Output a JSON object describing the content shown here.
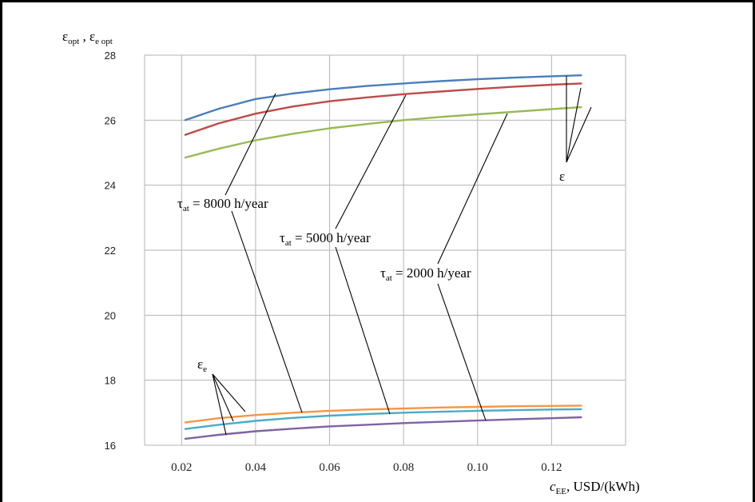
{
  "chart_data": {
    "type": "line",
    "ylabel": {
      "base": "ε",
      "sub1": "opt",
      "sep": " , ",
      "base2": "ε",
      "sub2": "e opt"
    },
    "xlabel": {
      "var": "c",
      "sub": "EE",
      "unit": ", USD/(kWh)"
    },
    "xlim": [
      0.01,
      0.14
    ],
    "ylim": [
      16,
      28
    ],
    "x_ticks": [
      0.02,
      0.04,
      0.06,
      0.08,
      0.1,
      0.12
    ],
    "x_tick_labels": [
      "0.02",
      "0.04",
      "0.06",
      "0.08",
      "0.10",
      "0.12"
    ],
    "y_ticks": [
      16,
      18,
      20,
      22,
      24,
      26,
      28
    ],
    "y_tick_labels": [
      "16",
      "18",
      "20",
      "22",
      "24",
      "26",
      "28"
    ],
    "grid": true,
    "series": [
      {
        "group": "ε",
        "tau": "8000",
        "color": "#4a7ebb",
        "x": [
          0.021,
          0.03,
          0.04,
          0.05,
          0.06,
          0.07,
          0.08,
          0.09,
          0.1,
          0.11,
          0.12,
          0.128
        ],
        "y": [
          26.0,
          26.35,
          26.65,
          26.82,
          26.95,
          27.05,
          27.13,
          27.2,
          27.26,
          27.31,
          27.35,
          27.38
        ]
      },
      {
        "group": "ε",
        "tau": "5000",
        "color": "#be4b48",
        "x": [
          0.021,
          0.03,
          0.04,
          0.05,
          0.06,
          0.07,
          0.08,
          0.09,
          0.1,
          0.11,
          0.12,
          0.128
        ],
        "y": [
          25.55,
          25.9,
          26.2,
          26.42,
          26.58,
          26.7,
          26.8,
          26.88,
          26.96,
          27.03,
          27.09,
          27.13
        ]
      },
      {
        "group": "ε",
        "tau": "2000",
        "color": "#98b954",
        "x": [
          0.021,
          0.03,
          0.04,
          0.05,
          0.06,
          0.07,
          0.08,
          0.09,
          0.1,
          0.11,
          0.12,
          0.128
        ],
        "y": [
          24.85,
          25.12,
          25.38,
          25.58,
          25.75,
          25.88,
          26.0,
          26.1,
          26.18,
          26.26,
          26.34,
          26.4
        ]
      },
      {
        "group": "εe",
        "tau": "8000",
        "color": "#f79646",
        "x": [
          0.021,
          0.03,
          0.04,
          0.05,
          0.06,
          0.07,
          0.08,
          0.09,
          0.1,
          0.11,
          0.12,
          0.128
        ],
        "y": [
          16.7,
          16.83,
          16.93,
          17.0,
          17.06,
          17.1,
          17.13,
          17.16,
          17.18,
          17.2,
          17.21,
          17.22
        ]
      },
      {
        "group": "εe",
        "tau": "5000",
        "color": "#4bacc6",
        "x": [
          0.021,
          0.03,
          0.04,
          0.05,
          0.06,
          0.07,
          0.08,
          0.09,
          0.1,
          0.11,
          0.12,
          0.128
        ],
        "y": [
          16.5,
          16.63,
          16.75,
          16.84,
          16.91,
          16.96,
          17.0,
          17.03,
          17.06,
          17.08,
          17.1,
          17.11
        ]
      },
      {
        "group": "εe",
        "tau": "2000",
        "color": "#7f63a2",
        "x": [
          0.021,
          0.03,
          0.04,
          0.05,
          0.06,
          0.07,
          0.08,
          0.09,
          0.1,
          0.11,
          0.12,
          0.128
        ],
        "y": [
          16.2,
          16.32,
          16.43,
          16.51,
          16.58,
          16.63,
          16.68,
          16.72,
          16.76,
          16.8,
          16.83,
          16.86
        ]
      }
    ],
    "annotations": [
      {
        "id": "tau8000",
        "prefix": "τ",
        "sub": "at",
        "text": " = 8000 h/year"
      },
      {
        "id": "tau5000",
        "prefix": "τ",
        "sub": "at",
        "text": " = 5000 h/year"
      },
      {
        "id": "tau2000",
        "prefix": "τ",
        "sub": "at",
        "text": " = 2000 h/year"
      },
      {
        "id": "eps",
        "text": "ε"
      },
      {
        "id": "eps_e",
        "base": "ε",
        "sub": "e"
      }
    ]
  }
}
